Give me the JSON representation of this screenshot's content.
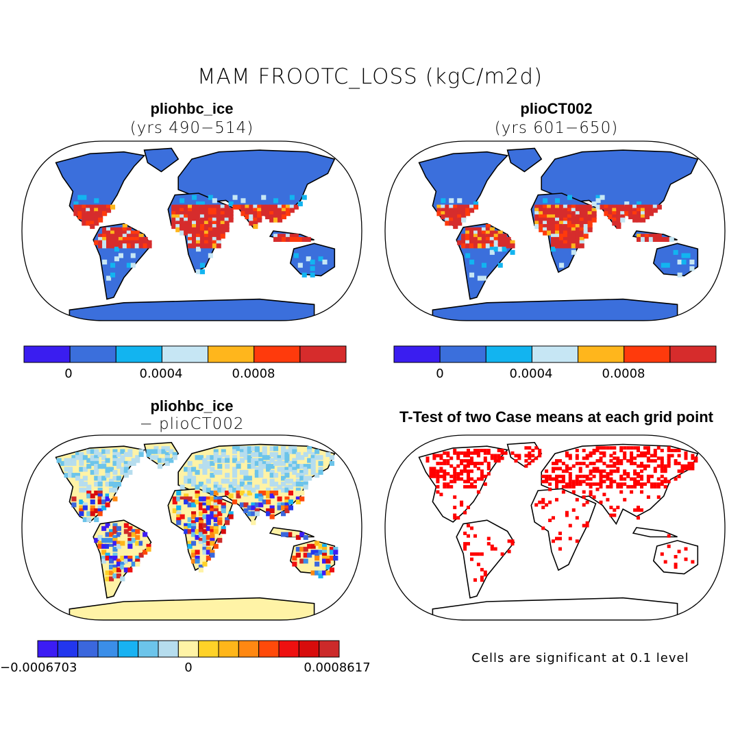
{
  "title": "MAM FROOTC_LOSS (kgC/m2d)",
  "panels": {
    "top_left": {
      "title": "pliohbc_ice",
      "subtitle": "(yrs 490−514)"
    },
    "top_right": {
      "title": "plioCT002",
      "subtitle": "(yrs 601−650)"
    },
    "bottom_left": {
      "title": "pliohbc_ice",
      "subtitle": "− plioCT002"
    },
    "bottom_right": {
      "title": "T-Test of two Case means at each grid point",
      "note": "Cells are significant at 0.1 level"
    }
  },
  "colorbar_abs": {
    "colors": [
      "#3a1df0",
      "#3b6fdc",
      "#12b4f0",
      "#c6e6f4",
      "#ffb61c",
      "#ff3a0c",
      "#d62c2c"
    ],
    "tick_labels": [
      "0",
      "0.0004",
      "0.0008"
    ]
  },
  "colorbar_diff": {
    "colors": [
      "#3c1cf4",
      "#2236ee",
      "#3b67dd",
      "#3b8ee8",
      "#18b2f2",
      "#6cc4ea",
      "#b6ddee",
      "#fff3a6",
      "#ffd228",
      "#ffb61a",
      "#ff8812",
      "#ff4a0a",
      "#ee1010",
      "#d80c0c",
      "#cc2a2a"
    ],
    "tick_labels": [
      "−0.0006703",
      "0",
      "0.0008617"
    ]
  },
  "colors": {
    "ocean": "#ffffff",
    "land_abs": "#3b6fdc",
    "land_diff": "#fff3a6",
    "significant": "#ff0000"
  }
}
